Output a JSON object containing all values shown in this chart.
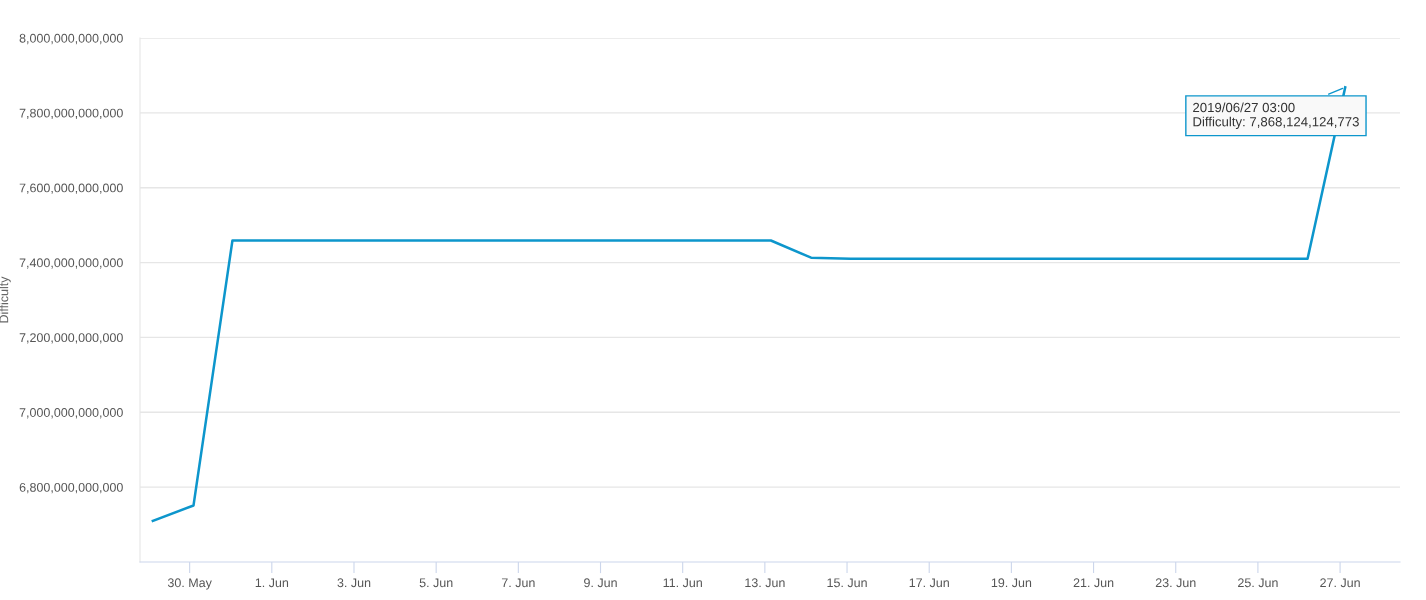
{
  "chart_data": {
    "type": "line",
    "ylabel": "Difficulty",
    "x": [
      "2019-05-29T02:30",
      "2019-05-30T02:15",
      "2019-05-31T01:00",
      "2019-06-13T03:30",
      "2019-06-14T03:00",
      "2019-06-15T02:00",
      "2019-06-26T05:00",
      "2019-06-27T03:00"
    ],
    "series": [
      {
        "color": "#0d96cc",
        "values": [
          6710000000000,
          6751000000000,
          7459000000000,
          7459000000000,
          7413000000000,
          7410000000000,
          7410000000000,
          7868124124773
        ]
      }
    ],
    "xlim": [
      "2019-05-28T19:00",
      "2019-06-28T11:00"
    ],
    "xticks": [
      {
        "value": "2019-05-30",
        "label": "30. May"
      },
      {
        "value": "2019-06-01",
        "label": "1. Jun"
      },
      {
        "value": "2019-06-03",
        "label": "3. Jun"
      },
      {
        "value": "2019-06-05",
        "label": "5. Jun"
      },
      {
        "value": "2019-06-07",
        "label": "7. Jun"
      },
      {
        "value": "2019-06-09",
        "label": "9. Jun"
      },
      {
        "value": "2019-06-11",
        "label": "11. Jun"
      },
      {
        "value": "2019-06-13",
        "label": "13. Jun"
      },
      {
        "value": "2019-06-15",
        "label": "15. Jun"
      },
      {
        "value": "2019-06-17",
        "label": "17. Jun"
      },
      {
        "value": "2019-06-19",
        "label": "19. Jun"
      },
      {
        "value": "2019-06-21",
        "label": "21. Jun"
      },
      {
        "value": "2019-06-23",
        "label": "23. Jun"
      },
      {
        "value": "2019-06-25",
        "label": "25. Jun"
      },
      {
        "value": "2019-06-27",
        "label": "27. Jun"
      }
    ],
    "ylim": [
      6600000000000,
      8000000000000
    ],
    "yticks": [
      {
        "value": 6800000000000,
        "label": "6,800,000,000,000"
      },
      {
        "value": 7000000000000,
        "label": "7,000,000,000,000"
      },
      {
        "value": 7200000000000,
        "label": "7,200,000,000,000"
      },
      {
        "value": 7400000000000,
        "label": "7,400,000,000,000"
      },
      {
        "value": 7600000000000,
        "label": "7,600,000,000,000"
      },
      {
        "value": 7800000000000,
        "label": "7,800,000,000,000"
      },
      {
        "value": 8000000000000,
        "label": "8,000,000,000,000"
      }
    ],
    "annotations": [
      {
        "text": "2019/06/27 03:00\nDifficulty: 7,868,124,124,773",
        "x": "2019-06-27T03:00",
        "y": 7868124124773
      }
    ],
    "grid": "y",
    "legend": false,
    "marker": "none",
    "line_style": "solid"
  }
}
